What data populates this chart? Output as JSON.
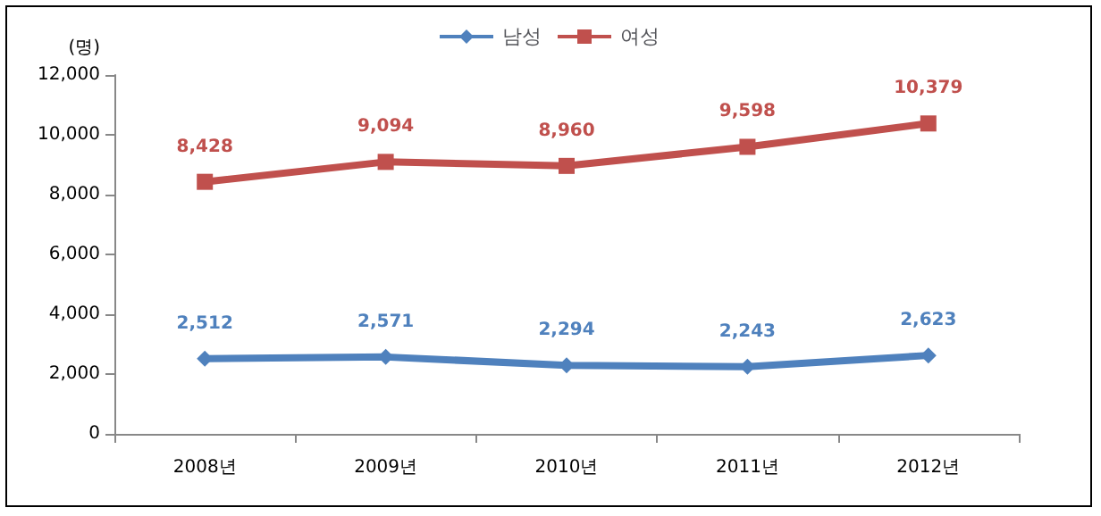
{
  "chart_data": {
    "type": "line",
    "ylabel": "(명)",
    "categories": [
      "2008년",
      "2009년",
      "2010년",
      "2011년",
      "2012년"
    ],
    "series": [
      {
        "name": "남성",
        "color": "#4f81bd",
        "marker": "diamond",
        "values": [
          2512,
          2571,
          2294,
          2243,
          2623
        ],
        "value_labels": [
          "2,512",
          "2,571",
          "2,294",
          "2,243",
          "2,623"
        ]
      },
      {
        "name": "여성",
        "color": "#c0504d",
        "marker": "square",
        "values": [
          8428,
          9094,
          8960,
          9598,
          10379
        ],
        "value_labels": [
          "8,428",
          "9,094",
          "8,960",
          "9,598",
          "10,379"
        ]
      }
    ],
    "ylim": [
      0,
      12000
    ],
    "yticks": [
      0,
      {
        "value": 2000,
        "label": "2,000"
      },
      {
        "value": 4000,
        "label": "4,000"
      },
      {
        "value": 6000,
        "label": "6,000"
      },
      {
        "value": 8000,
        "label": "8,000"
      },
      {
        "value": 10000,
        "label": "10,000"
      },
      {
        "value": 12000,
        "label": "12,000"
      }
    ],
    "legend": "top",
    "grid": false,
    "line_style": "solid"
  }
}
